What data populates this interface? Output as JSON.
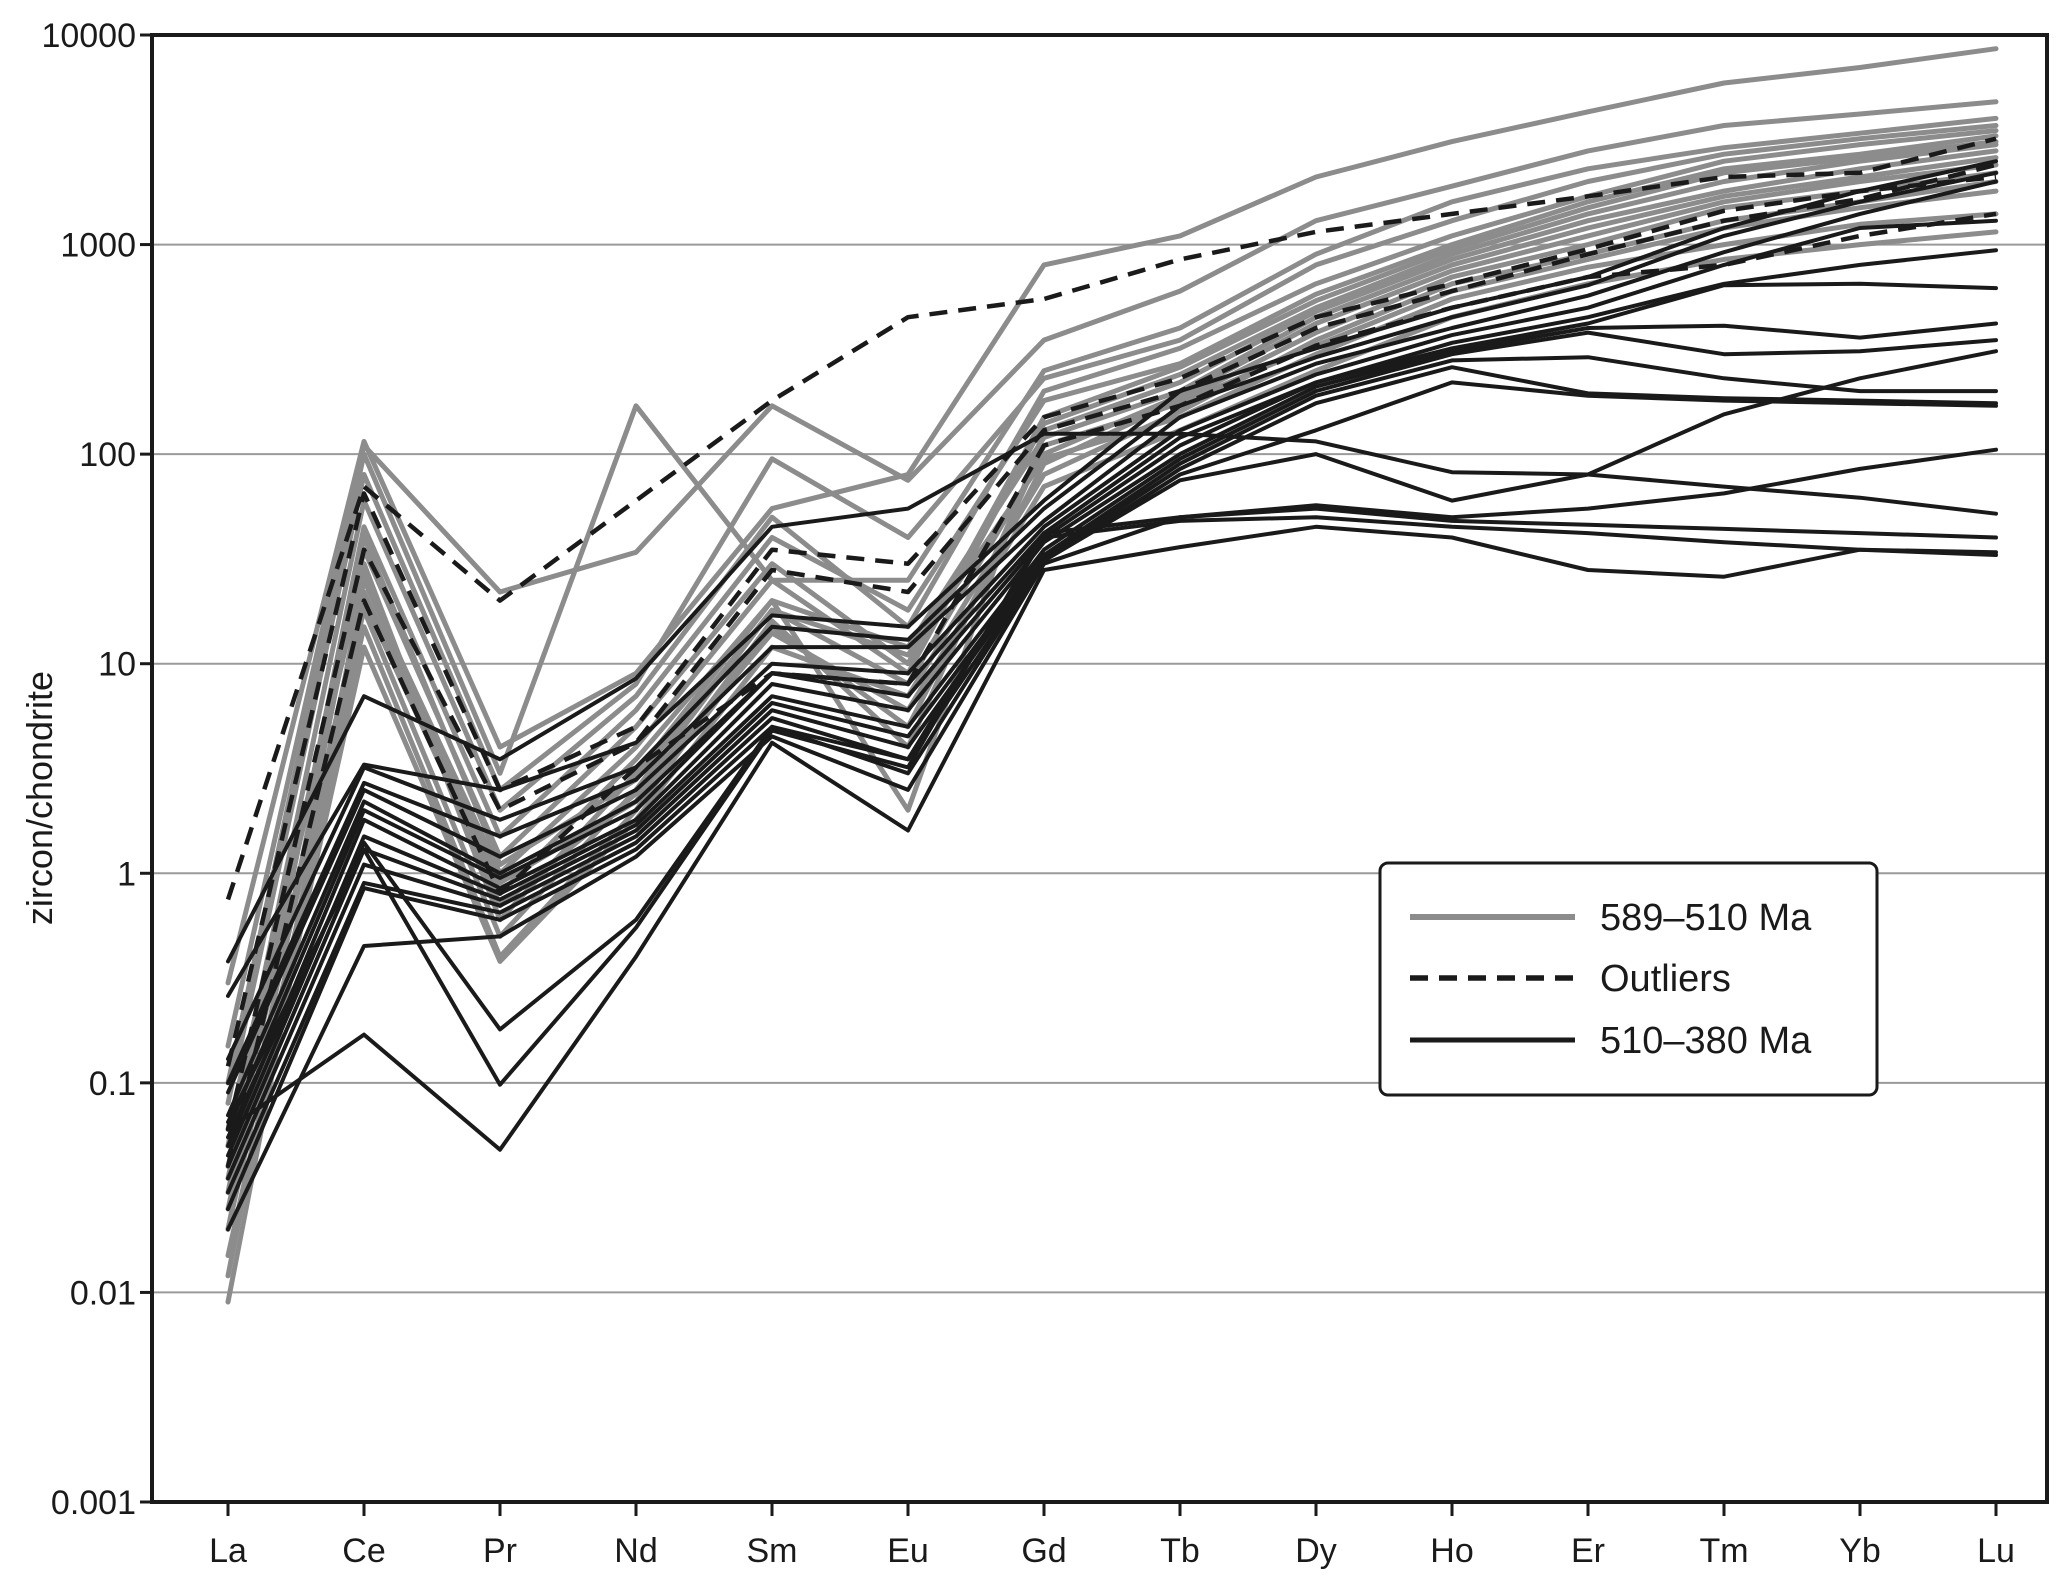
{
  "chart_data": {
    "type": "line",
    "title": "",
    "xlabel": "",
    "ylabel": "zircon/chondrite",
    "yscale": "log",
    "ylim": [
      0.001,
      10000
    ],
    "grid": true,
    "legend_position": "right",
    "categories": [
      "La",
      "Ce",
      "Pr",
      "Nd",
      "Sm",
      "Eu",
      "Gd",
      "Tb",
      "Dy",
      "Ho",
      "Er",
      "Tm",
      "Yb",
      "Lu"
    ],
    "y_ticks": [
      {
        "value": 0.001,
        "label": "0.001"
      },
      {
        "value": 0.01,
        "label": "0.01"
      },
      {
        "value": 0.1,
        "label": "0.1"
      },
      {
        "value": 1,
        "label": "1"
      },
      {
        "value": 10,
        "label": "10"
      },
      {
        "value": 100,
        "label": "100"
      },
      {
        "value": 1000,
        "label": "1000"
      },
      {
        "value": 10000,
        "label": "10000"
      }
    ],
    "legend": [
      {
        "label": "589–510 Ma",
        "group": "g1"
      },
      {
        "label": "Outliers",
        "group": "g2"
      },
      {
        "label": "510–380 Ma",
        "group": "g3"
      }
    ],
    "styles": {
      "g1": {
        "color": "#8c8c8c",
        "dash": "",
        "width": 5
      },
      "g2": {
        "color": "#1a1a1a",
        "dash": "18,11",
        "width": 4.5
      },
      "g3": {
        "color": "#1a1a1a",
        "dash": "",
        "width": 4
      }
    },
    "series": [
      {
        "group": "g1",
        "values": [
          0.3,
          115,
          4,
          9,
          55,
          80,
          800,
          1100,
          2100,
          3100,
          4300,
          5900,
          7000,
          8600
        ]
      },
      {
        "group": "g1",
        "values": [
          0.15,
          110,
          22,
          34,
          170,
          75,
          350,
          600,
          1300,
          1900,
          2800,
          3700,
          4200,
          4800
        ]
      },
      {
        "group": "g1",
        "values": [
          0.1,
          100,
          3,
          170,
          25,
          25,
          250,
          400,
          900,
          1600,
          2300,
          2900,
          3400,
          4000
        ]
      },
      {
        "group": "g1",
        "values": [
          0.08,
          80,
          2.5,
          8,
          95,
          40,
          230,
          350,
          800,
          1300,
          2000,
          2700,
          3200,
          3700
        ]
      },
      {
        "group": "g1",
        "values": [
          0.05,
          60,
          2,
          7,
          50,
          15,
          200,
          320,
          650,
          1100,
          1700,
          2500,
          3000,
          3500
        ]
      },
      {
        "group": "g1",
        "values": [
          0.03,
          45,
          1.5,
          6,
          40,
          18,
          180,
          270,
          580,
          1000,
          1600,
          2300,
          2700,
          3300
        ]
      },
      {
        "group": "g1",
        "values": [
          0.02,
          35,
          1.2,
          5,
          30,
          10,
          150,
          260,
          540,
          950,
          1500,
          2200,
          2600,
          3100
        ]
      },
      {
        "group": "g1",
        "values": [
          0.012,
          25,
          1,
          4,
          25,
          9,
          140,
          240,
          500,
          900,
          1400,
          2000,
          2500,
          3000
        ]
      },
      {
        "group": "g1",
        "values": [
          0.009,
          20,
          0.8,
          3.5,
          20,
          2,
          130,
          220,
          480,
          850,
          1300,
          1800,
          2300,
          2800
        ]
      },
      {
        "group": "g1",
        "values": [
          0.06,
          30,
          0.6,
          3,
          20,
          12,
          120,
          200,
          450,
          800,
          1200,
          1700,
          2100,
          2600
        ]
      },
      {
        "group": "g1",
        "values": [
          0.04,
          18,
          0.5,
          2.5,
          18,
          8,
          100,
          190,
          420,
          750,
          1100,
          1600,
          2000,
          2400
        ]
      },
      {
        "group": "g1",
        "values": [
          0.02,
          15,
          0.4,
          2,
          15,
          5,
          90,
          180,
          380,
          700,
          1000,
          1500,
          1800,
          2200
        ]
      },
      {
        "group": "g1",
        "values": [
          0.015,
          12,
          0.38,
          1.8,
          12,
          7,
          80,
          160,
          350,
          650,
          900,
          1300,
          1600,
          2000
        ]
      },
      {
        "group": "g1",
        "values": [
          0.025,
          22,
          0.9,
          2.2,
          16,
          4,
          110,
          175,
          330,
          600,
          850,
          1200,
          1500,
          1800
        ]
      },
      {
        "group": "g1",
        "values": [
          0.035,
          40,
          1.1,
          2.8,
          18,
          11,
          95,
          150,
          300,
          550,
          780,
          1000,
          1250,
          1400
        ]
      },
      {
        "group": "g1",
        "values": [
          0.05,
          28,
          0.7,
          2.4,
          14,
          6,
          70,
          130,
          250,
          450,
          650,
          850,
          1000,
          1150
        ]
      },
      {
        "group": "g2",
        "values": [
          0.75,
          70,
          20,
          60,
          180,
          450,
          550,
          850,
          1150,
          1400,
          1700,
          2100,
          2200,
          3200
        ]
      },
      {
        "group": "g2",
        "values": [
          0.12,
          65,
          2.5,
          5,
          35,
          30,
          150,
          230,
          450,
          650,
          950,
          1450,
          1800,
          2100
        ]
      },
      {
        "group": "g2",
        "values": [
          0.06,
          35,
          2,
          4.2,
          28,
          22,
          130,
          200,
          400,
          600,
          900,
          1300,
          1650,
          2400
        ]
      },
      {
        "group": "g2",
        "values": [
          0.04,
          20,
          0.8,
          3.2,
          9,
          8,
          110,
          170,
          330,
          500,
          700,
          800,
          1100,
          1400
        ]
      },
      {
        "group": "g3",
        "values": [
          0.38,
          7,
          3.5,
          8.5,
          45,
          55,
          125,
          125,
          115,
          82,
          80,
          70,
          62,
          52
        ]
      },
      {
        "group": "g3",
        "values": [
          0.26,
          3.3,
          2.5,
          4.2,
          17,
          15,
          60,
          200,
          320,
          500,
          700,
          1200,
          1800,
          2500
        ]
      },
      {
        "group": "g3",
        "values": [
          0.13,
          3.2,
          1.8,
          3.2,
          15,
          13,
          55,
          170,
          290,
          450,
          640,
          1100,
          1600,
          2200
        ]
      },
      {
        "group": "g3",
        "values": [
          0.1,
          2.7,
          1.5,
          2.8,
          12,
          12,
          48,
          150,
          270,
          400,
          570,
          920,
          1400,
          2000
        ]
      },
      {
        "group": "g3",
        "values": [
          0.09,
          2.5,
          1.2,
          2.5,
          10,
          9,
          45,
          130,
          240,
          370,
          500,
          800,
          1200,
          1300
        ]
      },
      {
        "group": "g3",
        "values": [
          0.07,
          2.2,
          1,
          2.2,
          9,
          8,
          42,
          120,
          220,
          340,
          450,
          650,
          800,
          940
        ]
      },
      {
        "group": "g3",
        "values": [
          0.06,
          2,
          0.95,
          2,
          9,
          7,
          40,
          110,
          220,
          320,
          420,
          640,
          650,
          620
        ]
      },
      {
        "group": "g3",
        "values": [
          0.05,
          1.8,
          0.85,
          1.8,
          8,
          6,
          38,
          100,
          210,
          310,
          400,
          410,
          360,
          420
        ]
      },
      {
        "group": "g3",
        "values": [
          0.045,
          1.5,
          0.8,
          1.7,
          7,
          5,
          35,
          95,
          200,
          300,
          380,
          300,
          310,
          350
        ]
      },
      {
        "group": "g3",
        "values": [
          0.04,
          1.3,
          0.75,
          1.6,
          6.5,
          4.5,
          33,
          90,
          190,
          280,
          290,
          230,
          200,
          200
        ]
      },
      {
        "group": "g3",
        "values": [
          0.035,
          1.1,
          0.7,
          1.5,
          6,
          4,
          32,
          85,
          175,
          260,
          195,
          185,
          180,
          175
        ]
      },
      {
        "group": "g3",
        "values": [
          0.03,
          0.9,
          0.65,
          1.4,
          5.5,
          3.5,
          31,
          80,
          130,
          220,
          190,
          180,
          175,
          170
        ]
      },
      {
        "group": "g3",
        "values": [
          0.025,
          0.85,
          0.6,
          1.3,
          5,
          3,
          31,
          75,
          100,
          60,
          80,
          155,
          230,
          310
        ]
      },
      {
        "group": "g3",
        "values": [
          0.02,
          0.45,
          0.5,
          1.2,
          4.5,
          2.5,
          30,
          50,
          57,
          50,
          55,
          65,
          85,
          105
        ]
      },
      {
        "group": "g3",
        "values": [
          0.06,
          0.17,
          0.048,
          0.4,
          4.2,
          1.6,
          28,
          36,
          45,
          40,
          28,
          26,
          35,
          34
        ]
      },
      {
        "group": "g3",
        "values": [
          0.055,
          1.4,
          0.18,
          0.6,
          5,
          3.5,
          40,
          48,
          50,
          45,
          42,
          38,
          35,
          33
        ]
      },
      {
        "group": "g3",
        "values": [
          0.065,
          1.3,
          0.098,
          0.55,
          4.8,
          3.2,
          42,
          50,
          55,
          48,
          46,
          44,
          42,
          40
        ]
      }
    ]
  }
}
